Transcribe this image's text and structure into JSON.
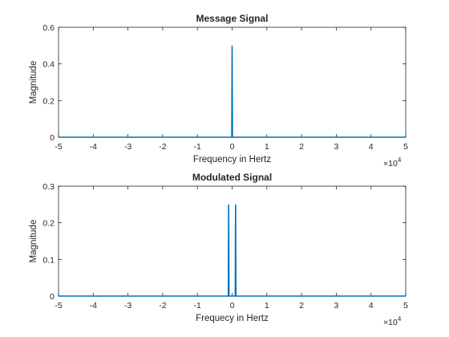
{
  "chart_data": [
    {
      "type": "line",
      "title": "Message Signal",
      "xlabel": "Frequency in Hertz",
      "ylabel": "Magnitude",
      "xlim": [
        -50000,
        50000
      ],
      "ylim": [
        0,
        0.6
      ],
      "xticks": [
        -50000,
        -40000,
        -30000,
        -20000,
        -10000,
        0,
        10000,
        20000,
        30000,
        40000,
        50000
      ],
      "xtick_labels": [
        "-5",
        "-4",
        "-3",
        "-2",
        "-1",
        "0",
        "1",
        "2",
        "3",
        "4",
        "5"
      ],
      "yticks": [
        0,
        0.2,
        0.4,
        0.6
      ],
      "ytick_labels": [
        "0",
        "0.2",
        "0.4",
        "0.6"
      ],
      "x_exponent_base": "×10",
      "x_exponent_power": "4",
      "grid": false,
      "color": "#0072BD",
      "series": [
        {
          "x": [
            -50000,
            -100,
            0,
            100,
            50000
          ],
          "y": [
            0,
            0,
            0.5,
            0,
            0
          ]
        }
      ]
    },
    {
      "type": "line",
      "title": "Modulated Signal",
      "xlabel": "Frequecy in Hertz",
      "ylabel": "Magnitude",
      "xlim": [
        -50000,
        50000
      ],
      "ylim": [
        0,
        0.3
      ],
      "xticks": [
        -50000,
        -40000,
        -30000,
        -20000,
        -10000,
        0,
        10000,
        20000,
        30000,
        40000,
        50000
      ],
      "xtick_labels": [
        "-5",
        "-4",
        "-3",
        "-2",
        "-1",
        "0",
        "1",
        "2",
        "3",
        "4",
        "5"
      ],
      "yticks": [
        0,
        0.1,
        0.2,
        0.3
      ],
      "ytick_labels": [
        "0",
        "0.1",
        "0.2",
        "0.3"
      ],
      "x_exponent_base": "×10",
      "x_exponent_power": "4",
      "grid": false,
      "color": "#0072BD",
      "series": [
        {
          "x": [
            -50000,
            -1100,
            -1000,
            -900,
            900,
            1000,
            1100,
            50000
          ],
          "y": [
            0,
            0,
            0.25,
            0,
            0,
            0.25,
            0,
            0
          ]
        }
      ]
    }
  ]
}
